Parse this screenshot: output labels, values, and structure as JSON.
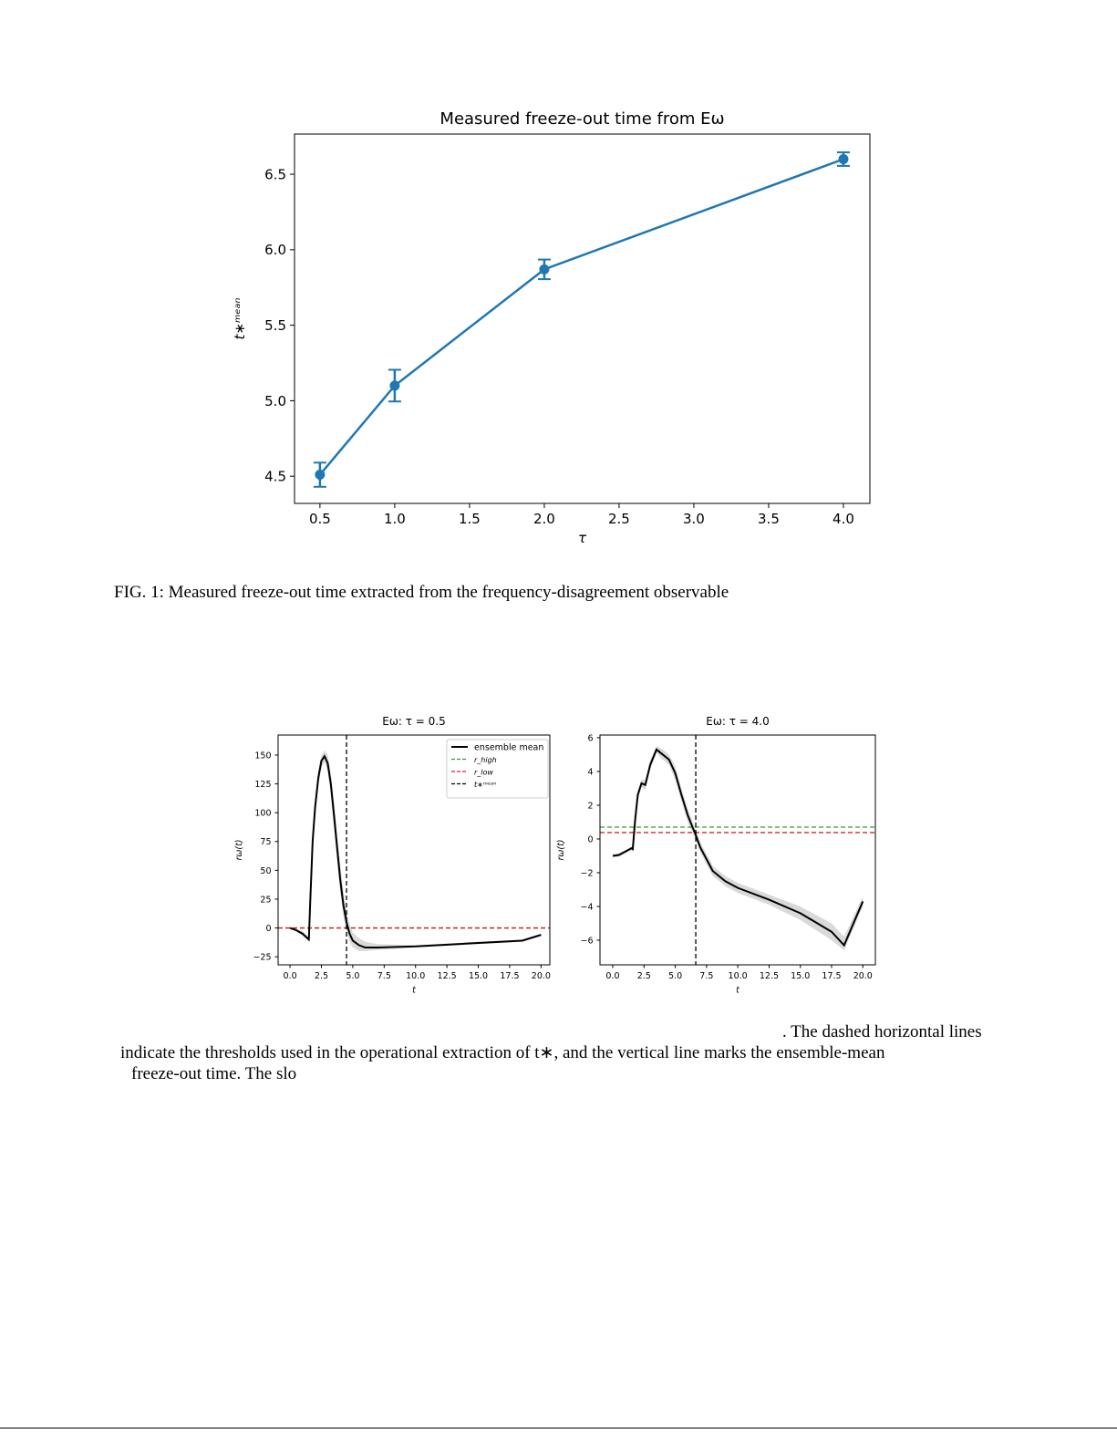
{
  "chart_data": [
    {
      "type": "line",
      "title": "Measured freeze-out time from Eω",
      "xlabel": "τ",
      "ylabel": "t∗ᵐᵉᵃⁿ",
      "x": [
        0.5,
        1.0,
        2.0,
        4.0
      ],
      "series": [
        {
          "color": "#1f77b4",
          "values": [
            4.51,
            5.1,
            5.87,
            6.6
          ],
          "errors": [
            0.08,
            0.105,
            0.065,
            0.045
          ]
        }
      ],
      "xlim": [
        0.33,
        4.177
      ],
      "ylim": [
        4.32,
        6.766
      ],
      "xticks": [
        0.5,
        {
          "value": 1.0,
          "label": "1.0"
        },
        1.5,
        {
          "value": 2.0,
          "label": "2.0"
        },
        2.5,
        {
          "value": 3.0,
          "label": "3.0"
        },
        3.5,
        {
          "value": 4.0,
          "label": "4.0"
        }
      ],
      "yticks": [
        4.5,
        {
          "value": 5.0,
          "label": "5.0"
        },
        5.5,
        {
          "value": 6.0,
          "label": "6.0"
        },
        6.5
      ],
      "grid": false
    },
    {
      "type": "line",
      "title": "Eω: τ = 0.5",
      "xlabel": "t",
      "ylabel": "rω(t)",
      "x": [
        0,
        0.5,
        1,
        1.5,
        1.6,
        1.8,
        2.0,
        2.25,
        2.5,
        2.75,
        3.0,
        3.25,
        3.5,
        3.75,
        4.0,
        4.25,
        4.5,
        4.75,
        5.0,
        5.5,
        6.0,
        7.0,
        10.0,
        15.0,
        18.5,
        20.0
      ],
      "series": [
        {
          "name": "ensemble mean",
          "color": "#000000",
          "values": [
            0,
            -2,
            -5,
            -10,
            20,
            75,
            105,
            130,
            145,
            149,
            143,
            125,
            98,
            70,
            42,
            20,
            5,
            -5,
            -11,
            -15,
            -17,
            -17,
            -16,
            -13,
            -11,
            -6
          ]
        }
      ],
      "band_upper": [
        0,
        -1,
        -3,
        -8,
        30,
        85,
        112,
        137,
        150,
        154,
        150,
        135,
        110,
        82,
        55,
        32,
        15,
        3,
        -4,
        -9,
        -12,
        -14,
        -15,
        -12,
        -10,
        -5
      ],
      "band_lower": [
        0,
        -3,
        -7,
        -12,
        10,
        65,
        98,
        123,
        139,
        144,
        136,
        115,
        86,
        58,
        30,
        10,
        -3,
        -12,
        -17,
        -20,
        -20,
        -19,
        -17,
        -14,
        -12,
        -7
      ],
      "band_color": "#d9d9d9",
      "hlines": [
        {
          "name": "r_high",
          "color": "#2ca02c",
          "value": 0
        },
        {
          "name": "r_low",
          "color": "#d62728",
          "value": 0
        }
      ],
      "vline": {
        "name": "t∗ᵐᵉᵃⁿ",
        "color": "#000000",
        "value": 4.5
      },
      "legend": "upper right",
      "xlim": [
        -0.95,
        20.7
      ],
      "ylim": [
        -32,
        167.4
      ],
      "xticks": [
        {
          "value": 0,
          "label": "0.0"
        },
        2.5,
        {
          "value": 5,
          "label": "5.0"
        },
        7.5,
        {
          "value": 10,
          "label": "10.0"
        },
        12.5,
        {
          "value": 15,
          "label": "15.0"
        },
        17.5,
        {
          "value": 20,
          "label": "20.0"
        }
      ],
      "yticks": [
        {
          "value": -25,
          "label": "−25"
        },
        0,
        25,
        50,
        75,
        100,
        125,
        150
      ],
      "grid": false
    },
    {
      "type": "line",
      "title": "Eω: τ = 4.0",
      "xlabel": "t",
      "ylabel": "rω(t)",
      "x": [
        0,
        0.5,
        1,
        1.5,
        1.6,
        1.8,
        2.0,
        2.3,
        2.6,
        3.0,
        3.5,
        4.0,
        4.5,
        5.0,
        5.5,
        6.0,
        6.6,
        7.0,
        8.0,
        9.0,
        10.0,
        12.5,
        15.0,
        17.5,
        18.5,
        20.0
      ],
      "series": [
        {
          "color": "#000000",
          "values": [
            -1.0,
            -0.95,
            -0.75,
            -0.55,
            -0.6,
            1.2,
            2.6,
            3.3,
            3.2,
            4.4,
            5.3,
            5.0,
            4.7,
            3.9,
            2.6,
            1.4,
            0.3,
            -0.5,
            -1.9,
            -2.5,
            -2.9,
            -3.6,
            -4.4,
            -5.5,
            -6.3,
            -3.7
          ]
        }
      ],
      "band_upper": [
        -0.9,
        -0.85,
        -0.65,
        -0.45,
        -0.4,
        1.5,
        2.9,
        3.5,
        3.5,
        4.7,
        5.5,
        5.3,
        5.0,
        4.3,
        3.0,
        1.8,
        0.6,
        -0.2,
        -1.6,
        -2.2,
        -2.6,
        -3.3,
        -4.0,
        -5.0,
        -5.8,
        -3.4
      ],
      "band_lower": [
        -1.1,
        -1.05,
        -0.85,
        -0.65,
        -0.8,
        0.9,
        2.3,
        3.1,
        2.9,
        4.1,
        5.1,
        4.7,
        4.4,
        3.5,
        2.2,
        1.0,
        0.0,
        -0.8,
        -2.2,
        -2.8,
        -3.2,
        -3.9,
        -4.8,
        -6.0,
        -6.6,
        -4.0
      ],
      "band_color": "#d9d9d9",
      "hlines": [
        {
          "color": "#2ca02c",
          "value": 0.7
        },
        {
          "color": "#d62728",
          "value": 0.38
        }
      ],
      "vline": {
        "color": "#000000",
        "value": 6.64
      },
      "xlim": [
        -1.02,
        21.0
      ],
      "ylim": [
        -7.46,
        6.16
      ],
      "xticks": [
        {
          "value": 0,
          "label": "0.0"
        },
        2.5,
        {
          "value": 5,
          "label": "5.0"
        },
        7.5,
        {
          "value": 10,
          "label": "10.0"
        },
        12.5,
        {
          "value": 15,
          "label": "15.0"
        },
        17.5,
        {
          "value": 20,
          "label": "20.0"
        }
      ],
      "yticks": [
        {
          "value": -6,
          "label": "−6"
        },
        {
          "value": -4,
          "label": "−4"
        },
        {
          "value": -2,
          "label": "−2"
        },
        0,
        2,
        4,
        6
      ],
      "grid": false
    }
  ],
  "captions": [
    [
      "FIG. 1: Measured freeze-out time extracted from the frequency-disagreement observable"
    ],
    [
      ". The dashed horizontal lines",
      "indicate the thresholds used in the operational extraction of t∗, and the vertical line marks the ensemble-mean",
      "freeze-out time. The slo"
    ]
  ]
}
